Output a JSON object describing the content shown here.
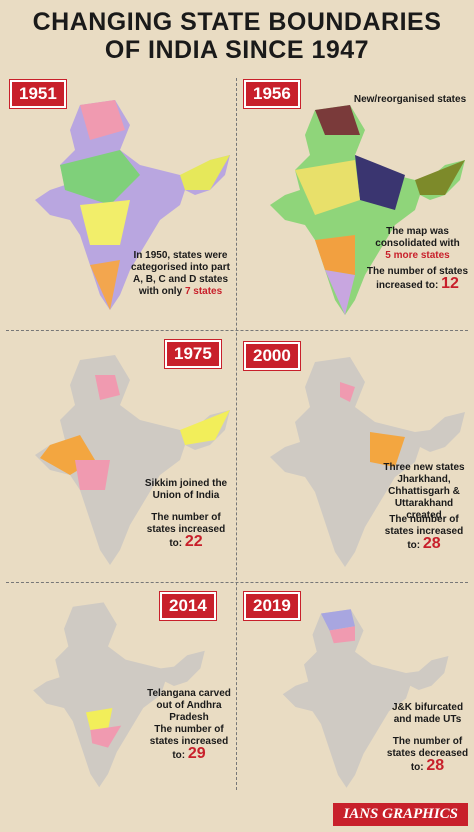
{
  "header": {
    "title_line1": "CHANGING STATE BOUNDARIES",
    "title_line2": "OF INDIA SINCE 1947"
  },
  "panels": [
    {
      "year": "1951",
      "caption": "In 1950, states were categorised into part A, B, C and D states with only",
      "highlight": "7 states"
    },
    {
      "year": "1956",
      "legend": "New/reorganised states",
      "caption": "The map was consolidated with",
      "highlight": "5 more states",
      "count_text": "The number of states increased to:",
      "count": 12
    },
    {
      "year": "1975",
      "caption": "Sikkim joined the Union of India",
      "count_text": "The number of states increased to:",
      "count": 22
    },
    {
      "year": "2000",
      "caption": "Three new states Jharkhand, Chhattisgarh & Uttarakhand created",
      "count_text": "The number of states increased to:",
      "count": 28
    },
    {
      "year": "2014",
      "caption": "Telangana carved out of Andhra Pradesh",
      "count_text": "The number of states increased to:",
      "count": 29
    },
    {
      "year": "2019",
      "caption": "J&K bifurcated and made UTs",
      "count_text": "The number of states decreased to:",
      "count": 28
    }
  ],
  "footer": {
    "credit": "IANS GRAPHICS"
  }
}
